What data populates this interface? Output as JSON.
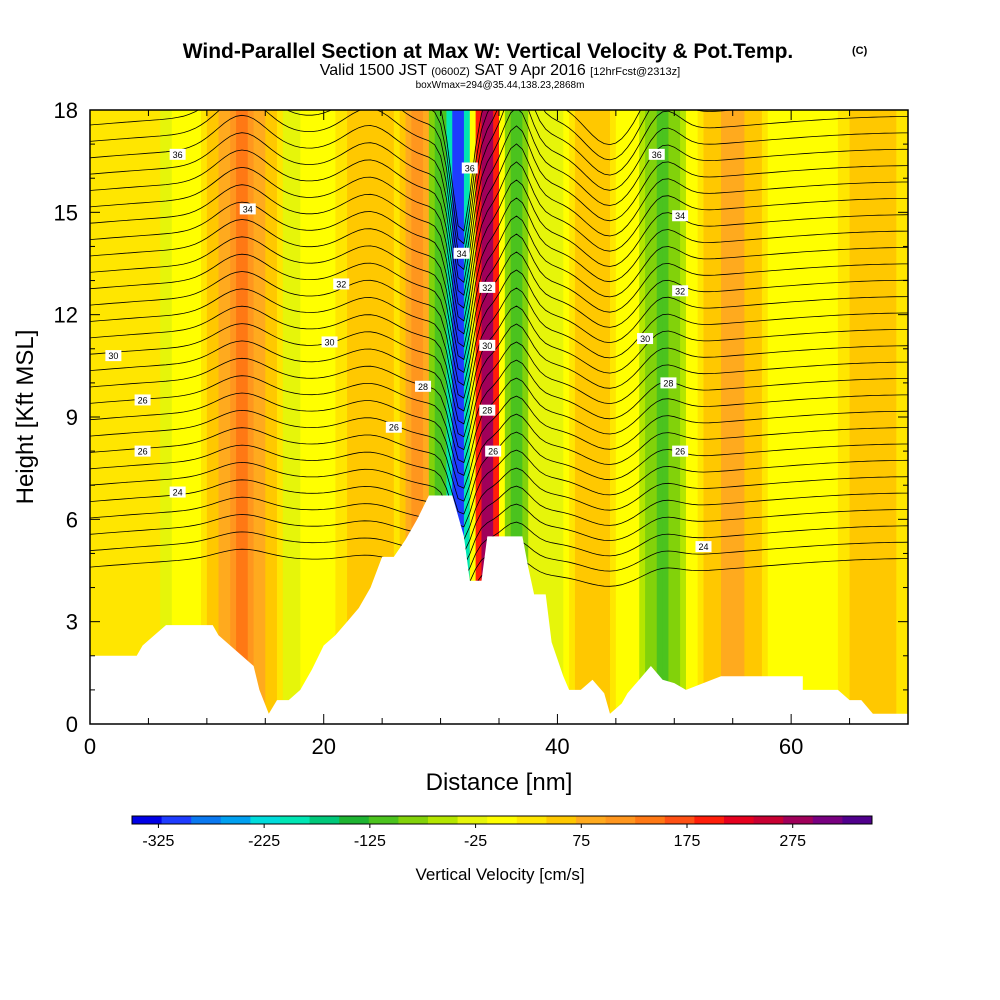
{
  "header": {
    "title": "Wind-Parallel Section at Max W: Vertical Velocity & Pot.Temp.",
    "title_mark": "(C)",
    "subtitle_parts": [
      "Valid 1500 JST ",
      "(0600Z)",
      " SAT 9 Apr 2016 ",
      "[12hrFcst@2313z]"
    ],
    "detail": "boxWmax=294@35.44,138.23,2868m"
  },
  "chart_data": {
    "type": "heatmap",
    "title": "Wind-Parallel Section at Max W: Vertical Velocity & Pot.Temp.",
    "xlabel": "Distance [nm]",
    "ylabel": "Height [Kft MSL]",
    "xlim": [
      0,
      70
    ],
    "ylim": [
      0,
      18
    ],
    "x_ticks": [
      0,
      20,
      40,
      60
    ],
    "y_ticks": [
      0,
      3,
      6,
      9,
      12,
      15,
      18
    ],
    "grid": false,
    "field": "Vertical Velocity [cm/s] (filled), Potential Temperature (contours)",
    "colorbar": {
      "label": "Vertical Velocity [cm/s]",
      "tick_labels": [
        "-325",
        "-225",
        "-125",
        "-25",
        "75",
        "175",
        "275"
      ],
      "tick_values": [
        -325,
        -225,
        -125,
        -25,
        75,
        175,
        275
      ],
      "range": [
        -350,
        350
      ],
      "colors": [
        "#0000e6",
        "#1e3cff",
        "#0a78f0",
        "#00a0f0",
        "#00dcdc",
        "#00e6b4",
        "#00c87a",
        "#1eb432",
        "#4bc31e",
        "#82d20a",
        "#b4e600",
        "#e6f50a",
        "#ffff00",
        "#ffe600",
        "#ffc800",
        "#ffaa1e",
        "#ff961e",
        "#ff7814",
        "#ff5014",
        "#ff1e0a",
        "#e6001e",
        "#c80032",
        "#a0005a",
        "#780080",
        "#50008c"
      ]
    },
    "regions": [
      {
        "x_center": 2,
        "half_width": 5,
        "w": 35,
        "note": "weak ascent left edge"
      },
      {
        "x_center": 6,
        "half_width": 1.6,
        "w": -20
      },
      {
        "x_center": 13,
        "half_width": 3.5,
        "w": 95
      },
      {
        "x_center": 13,
        "half_width": 1.5,
        "w": 130
      },
      {
        "x_center": 17,
        "half_width": 1.5,
        "w": -20
      },
      {
        "x_center": 24,
        "half_width": 3,
        "w": 70
      },
      {
        "x_center": 28,
        "half_width": 1.5,
        "w": 110
      },
      {
        "x_center": 30,
        "half_width": 1,
        "w": -120
      },
      {
        "x_center": 31.5,
        "half_width": 1,
        "w": -320
      },
      {
        "x_center": 34,
        "half_width": 1.1,
        "w": 300
      },
      {
        "x_center": 36.5,
        "half_width": 1,
        "w": -130
      },
      {
        "x_center": 39,
        "half_width": 1.5,
        "w": -40
      },
      {
        "x_center": 43,
        "half_width": 2,
        "w": 70
      },
      {
        "x_center": 49,
        "half_width": 2,
        "w": -110
      },
      {
        "x_center": 55,
        "half_width": 3,
        "w": 80
      },
      {
        "x_center": 67,
        "half_width": 3,
        "w": 60
      }
    ],
    "contour_labels": [
      {
        "x": 7.5,
        "y": 16.7,
        "text": "36"
      },
      {
        "x": 48.5,
        "y": 16.7,
        "text": "36"
      },
      {
        "x": 13.5,
        "y": 15.1,
        "text": "34"
      },
      {
        "x": 50.5,
        "y": 14.9,
        "text": "34"
      },
      {
        "x": 32.5,
        "y": 16.3,
        "text": "36"
      },
      {
        "x": 31.8,
        "y": 13.8,
        "text": "34"
      },
      {
        "x": 21.5,
        "y": 12.9,
        "text": "32"
      },
      {
        "x": 34,
        "y": 12.8,
        "text": "32"
      },
      {
        "x": 50.5,
        "y": 12.7,
        "text": "32"
      },
      {
        "x": 2,
        "y": 10.8,
        "text": "30"
      },
      {
        "x": 20.5,
        "y": 11.2,
        "text": "30"
      },
      {
        "x": 34,
        "y": 11.1,
        "text": "30"
      },
      {
        "x": 47.5,
        "y": 11.3,
        "text": "30"
      },
      {
        "x": 28.5,
        "y": 9.9,
        "text": "28"
      },
      {
        "x": 49.5,
        "y": 10.0,
        "text": "28"
      },
      {
        "x": 4.5,
        "y": 9.5,
        "text": "26"
      },
      {
        "x": 26,
        "y": 8.7,
        "text": "26"
      },
      {
        "x": 34,
        "y": 9.2,
        "text": "28"
      },
      {
        "x": 4.5,
        "y": 8.0,
        "text": "26"
      },
      {
        "x": 34.5,
        "y": 8.0,
        "text": "26"
      },
      {
        "x": 50.5,
        "y": 8.0,
        "text": "26"
      },
      {
        "x": 7.5,
        "y": 6.8,
        "text": "24"
      },
      {
        "x": 52.5,
        "y": 5.2,
        "text": "24"
      }
    ],
    "terrain_kft": [
      [
        0,
        2
      ],
      [
        4,
        2
      ],
      [
        4.5,
        2.3
      ],
      [
        5.5,
        2.6
      ],
      [
        6.5,
        2.9
      ],
      [
        10.5,
        2.9
      ],
      [
        11,
        2.6
      ],
      [
        12,
        2.3
      ],
      [
        13,
        2
      ],
      [
        14,
        1.7
      ],
      [
        14.5,
        1
      ],
      [
        15.3,
        0.3
      ],
      [
        16,
        0.7
      ],
      [
        17,
        0.7
      ],
      [
        18,
        1
      ],
      [
        19,
        1.6
      ],
      [
        20,
        2.3
      ],
      [
        21,
        2.6
      ],
      [
        22,
        3
      ],
      [
        23,
        3.4
      ],
      [
        24,
        4
      ],
      [
        25,
        4.9
      ],
      [
        26,
        4.9
      ],
      [
        27,
        5.4
      ],
      [
        28,
        6
      ],
      [
        29,
        6.7
      ],
      [
        31,
        6.7
      ],
      [
        32,
        5.5
      ],
      [
        32.5,
        4.2
      ],
      [
        33.5,
        4.2
      ],
      [
        34,
        5.5
      ],
      [
        37,
        5.5
      ],
      [
        37.5,
        4.6
      ],
      [
        38,
        3.8
      ],
      [
        39,
        3.8
      ],
      [
        39.5,
        2.4
      ],
      [
        40.5,
        1.4
      ],
      [
        41,
        1
      ],
      [
        42,
        1
      ],
      [
        43,
        1.3
      ],
      [
        44,
        0.9
      ],
      [
        44.5,
        0.3
      ],
      [
        45.5,
        0.6
      ],
      [
        46,
        0.9
      ],
      [
        47,
        1.3
      ],
      [
        48,
        1.7
      ],
      [
        49,
        1.3
      ],
      [
        50,
        1.2
      ],
      [
        51,
        1
      ],
      [
        54,
        1.4
      ],
      [
        61,
        1.4
      ],
      [
        61,
        1
      ],
      [
        64,
        1
      ],
      [
        65,
        0.7
      ],
      [
        66,
        0.7
      ],
      [
        67,
        0.3
      ],
      [
        70,
        0.3
      ]
    ]
  }
}
